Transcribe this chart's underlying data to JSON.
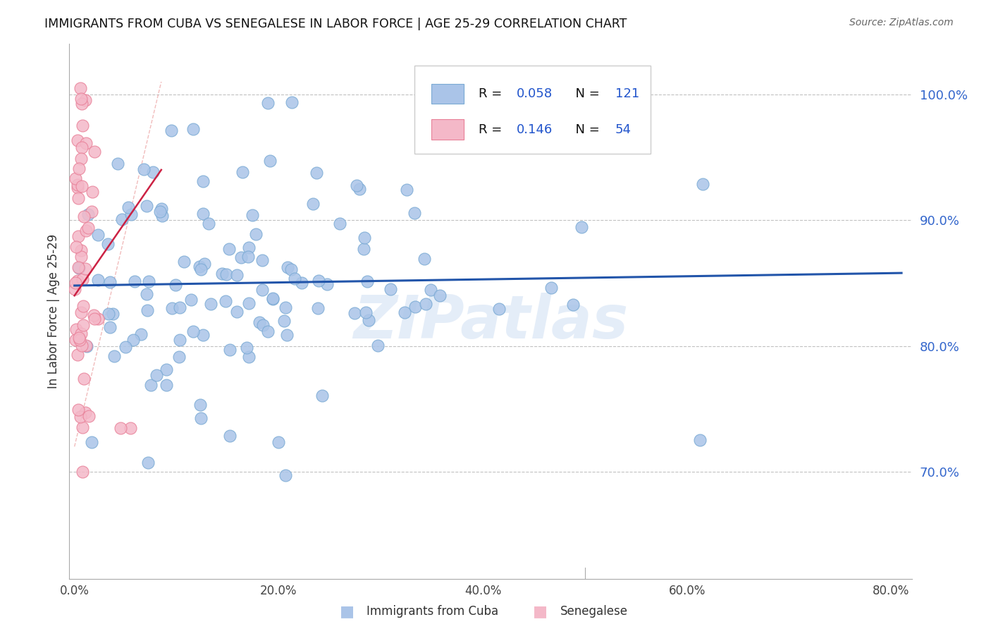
{
  "title": "IMMIGRANTS FROM CUBA VS SENEGALESE IN LABOR FORCE | AGE 25-29 CORRELATION CHART",
  "source": "Source: ZipAtlas.com",
  "ylabel": "In Labor Force | Age 25-29",
  "x_tick_labels": [
    "0.0%",
    "20.0%",
    "40.0%",
    "60.0%",
    "80.0%"
  ],
  "x_tick_vals": [
    0.0,
    0.2,
    0.4,
    0.6,
    0.8
  ],
  "y_tick_labels": [
    "70.0%",
    "80.0%",
    "90.0%",
    "100.0%"
  ],
  "y_tick_vals": [
    0.7,
    0.8,
    0.9,
    1.0
  ],
  "xlim": [
    -0.005,
    0.82
  ],
  "ylim": [
    0.615,
    1.04
  ],
  "blue_color": "#aac4e8",
  "blue_edge_color": "#7aaad4",
  "pink_color": "#f4b8c8",
  "pink_edge_color": "#e88098",
  "blue_line_color": "#2255aa",
  "pink_line_color": "#cc2244",
  "pink_dash_color": "#e89090",
  "grid_color": "#bbbbbb",
  "background_color": "#ffffff",
  "watermark": "ZIPatlas",
  "blue_R": 0.058,
  "blue_N": 121,
  "pink_R": 0.146,
  "pink_N": 54,
  "legend_label_color": "#111111",
  "legend_value_color": "#2255aa",
  "legend_n_color": "#2255aa"
}
